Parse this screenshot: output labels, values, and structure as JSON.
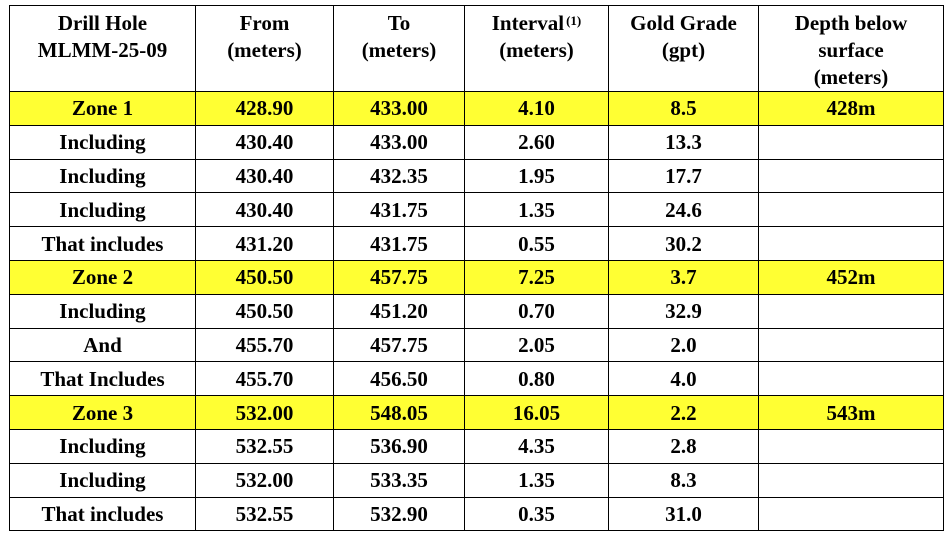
{
  "colors": {
    "zone_highlight": "#ffff33",
    "border": "#000000",
    "text": "#000000"
  },
  "header": {
    "hole_label_line1": "Drill Hole",
    "hole_label_line2": "MLMM-25-09",
    "from_line1": "From",
    "from_line2": "(meters)",
    "to_line1": "To",
    "to_line2": "(meters)",
    "interval_line1": "Interval",
    "interval_note": "(1)",
    "interval_line2": "(meters)",
    "grade_line1": "Gold Grade",
    "grade_line2": "(gpt)",
    "depth_line1": "Depth below",
    "depth_line2": "surface",
    "depth_line3": "(meters)"
  },
  "rows": [
    {
      "label": "Zone 1",
      "from": "428.90",
      "to": "433.00",
      "interval": "4.10",
      "grade": "8.5",
      "depth": "428m",
      "highlight": true
    },
    {
      "label": "Including",
      "from": "430.40",
      "to": "433.00",
      "interval": "2.60",
      "grade": "13.3",
      "depth": "",
      "highlight": false
    },
    {
      "label": "Including",
      "from": "430.40",
      "to": "432.35",
      "interval": "1.95",
      "grade": "17.7",
      "depth": "",
      "highlight": false
    },
    {
      "label": "Including",
      "from": "430.40",
      "to": "431.75",
      "interval": "1.35",
      "grade": "24.6",
      "depth": "",
      "highlight": false
    },
    {
      "label": "That includes",
      "from": "431.20",
      "to": "431.75",
      "interval": "0.55",
      "grade": "30.2",
      "depth": "",
      "highlight": false
    },
    {
      "label": "Zone 2",
      "from": "450.50",
      "to": "457.75",
      "interval": "7.25",
      "grade": "3.7",
      "depth": "452m",
      "highlight": true
    },
    {
      "label": "Including",
      "from": "450.50",
      "to": "451.20",
      "interval": "0.70",
      "grade": "32.9",
      "depth": "",
      "highlight": false
    },
    {
      "label": "And",
      "from": "455.70",
      "to": "457.75",
      "interval": "2.05",
      "grade": "2.0",
      "depth": "",
      "highlight": false
    },
    {
      "label": "That Includes",
      "from": "455.70",
      "to": "456.50",
      "interval": "0.80",
      "grade": "4.0",
      "depth": "",
      "highlight": false
    },
    {
      "label": "Zone 3",
      "from": "532.00",
      "to": "548.05",
      "interval": "16.05",
      "grade": "2.2",
      "depth": "543m",
      "highlight": true
    },
    {
      "label": "Including",
      "from": "532.55",
      "to": "536.90",
      "interval": "4.35",
      "grade": "2.8",
      "depth": "",
      "highlight": false
    },
    {
      "label": "Including",
      "from": "532.00",
      "to": "533.35",
      "interval": "1.35",
      "grade": "8.3",
      "depth": "",
      "highlight": false
    },
    {
      "label": "That includes",
      "from": "532.55",
      "to": "532.90",
      "interval": "0.35",
      "grade": "31.0",
      "depth": "",
      "highlight": false
    }
  ]
}
